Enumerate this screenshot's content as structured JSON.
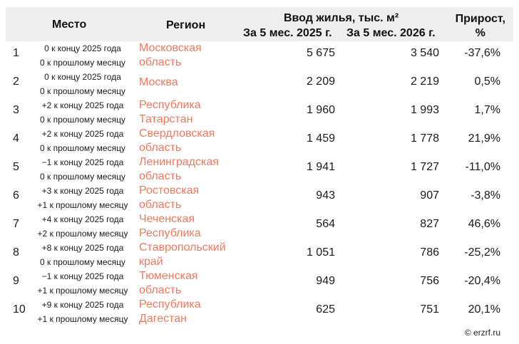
{
  "header": {
    "place": "Место",
    "region": "Регион",
    "vvod": "Ввод жилья, тыс. м²",
    "col2025": "За 5 мес. 2025 г.",
    "col2026": "За 5 мес. 2026 г.",
    "growth_line1": "Прирост,",
    "growth_line2": "%"
  },
  "rows": [
    {
      "rank": "1",
      "change_year": "0 к концу 2025 года",
      "change_month": "0 к прошлому месяцу",
      "region_l1": "Московская",
      "region_l2": "область",
      "v2025": "5 675",
      "v2026": "3 540",
      "growth": "-37,6%"
    },
    {
      "rank": "2",
      "change_year": "0 к концу 2025 года",
      "change_month": "0 к прошлому месяцу",
      "region_l1": "Москва",
      "region_l2": "",
      "v2025": "2 209",
      "v2026": "2 219",
      "growth": "0,5%"
    },
    {
      "rank": "3",
      "change_year": "+2 к концу 2025 года",
      "change_month": "0 к прошлому месяцу",
      "region_l1": "Республика",
      "region_l2": "Татарстан",
      "v2025": "1 960",
      "v2026": "1 993",
      "growth": "1,7%"
    },
    {
      "rank": "4",
      "change_year": "+2 к концу 2025 года",
      "change_month": "0 к прошлому месяцу",
      "region_l1": "Свердловская",
      "region_l2": "область",
      "v2025": "1 459",
      "v2026": "1 778",
      "growth": "21,9%"
    },
    {
      "rank": "5",
      "change_year": "−1 к концу 2025 года",
      "change_month": "0 к прошлому месяцу",
      "region_l1": "Ленинградская",
      "region_l2": "область",
      "v2025": "1 941",
      "v2026": "1 727",
      "growth": "-11,0%"
    },
    {
      "rank": "6",
      "change_year": "+3 к концу 2025 года",
      "change_month": "+1 к прошлому месяцу",
      "region_l1": "Ростовская",
      "region_l2": "область",
      "v2025": "943",
      "v2026": "907",
      "growth": "-3,8%"
    },
    {
      "rank": "7",
      "change_year": "+4 к концу 2025 года",
      "change_month": "+2 к прошлому месяцу",
      "region_l1": "Чеченская",
      "region_l2": "Республика",
      "v2025": "564",
      "v2026": "827",
      "growth": "46,6%"
    },
    {
      "rank": "8",
      "change_year": "+8 к концу 2025 года",
      "change_month": "0 к прошлому месяцу",
      "region_l1": "Ставропольский",
      "region_l2": "край",
      "v2025": "1 051",
      "v2026": "786",
      "growth": "-25,2%"
    },
    {
      "rank": "9",
      "change_year": "−1 к концу 2025 года",
      "change_month": "+1 к прошлому месяцу",
      "region_l1": "Тюменская",
      "region_l2": "область",
      "v2025": "949",
      "v2026": "756",
      "growth": "-20,4%"
    },
    {
      "rank": "10",
      "change_year": "+9 к концу 2025 года",
      "change_month": "+1 к прошлому месяцу",
      "region_l1": "Республика",
      "region_l2": "Дагестан",
      "v2025": "625",
      "v2026": "751",
      "growth": "20,1%"
    }
  ],
  "footer": {
    "copyright": "© erzrf.ru"
  },
  "colors": {
    "region_link": "#f07a5e",
    "header_bg": "#eeeeee"
  }
}
